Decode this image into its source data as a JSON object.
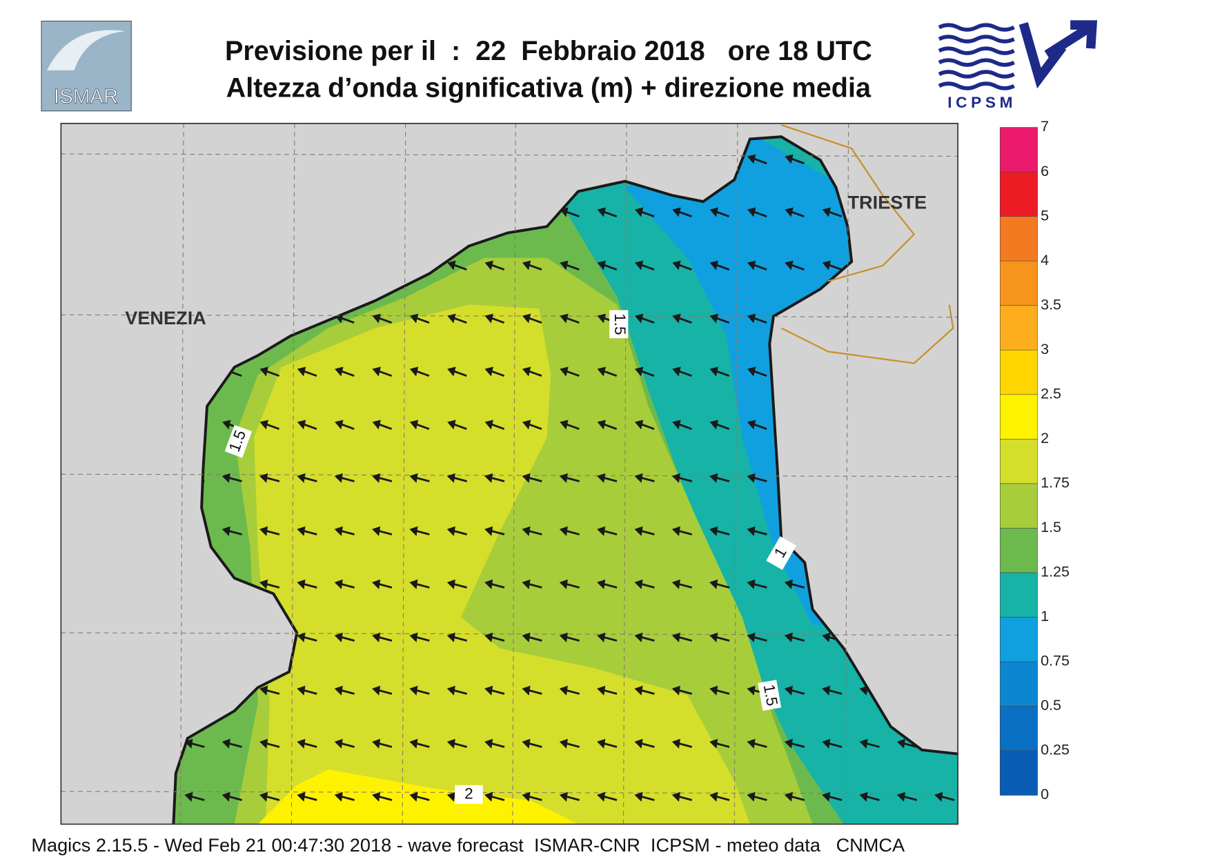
{
  "header": {
    "title_line1": "Previsione per il  :  22  Febbraio 2018   ore 18 UTC",
    "title_line2": "Altezza d’onda significativa (m) + direzione media"
  },
  "logos": {
    "left": "ISMAR",
    "right": "ICPSM"
  },
  "map": {
    "places": [
      "VENEZIA",
      "TRIESTE"
    ],
    "contour_labels": [
      "1.5",
      "1.5",
      "1",
      "1.5",
      "2"
    ]
  },
  "legend": {
    "labels": [
      "0",
      "0.25",
      "0.5",
      "0.75",
      "1",
      "1.25",
      "1.5",
      "1.75",
      "2",
      "2.5",
      "3",
      "3.5",
      "4",
      "5",
      "6",
      "7"
    ],
    "colors": [
      "#0a5db5",
      "#0a70c4",
      "#0b87d2",
      "#10a0e0",
      "#16b3a6",
      "#6cba4e",
      "#a7cd3b",
      "#d5de2b",
      "#fff200",
      "#ffd600",
      "#fdae1d",
      "#f7941d",
      "#f47a22",
      "#ed1c24",
      "#ec1a6c"
    ]
  },
  "footer": "Magics 2.15.5 - Wed Feb 21 00:47:30 2018 - wave forecast  ISMAR-CNR  ICPSM - meteo data   CNMCA"
}
